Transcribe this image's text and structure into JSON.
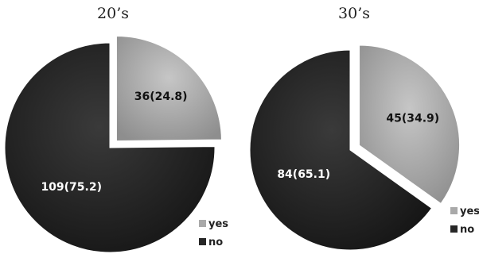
{
  "chart_data": [
    {
      "type": "pie",
      "title": "20’s",
      "categories": [
        "yes",
        "no"
      ],
      "values": [
        36,
        109
      ],
      "percents": [
        24.8,
        75.2
      ],
      "data_labels": [
        "36(24.8)",
        "109(75.2)"
      ],
      "exploded": [
        "yes"
      ],
      "legend": {
        "entries": [
          "yes",
          "no"
        ],
        "placement": "bottom-right"
      }
    },
    {
      "type": "pie",
      "title": "30’s",
      "categories": [
        "yes",
        "no"
      ],
      "values": [
        45,
        84
      ],
      "percents": [
        34.9,
        65.1
      ],
      "data_labels": [
        "45(34.9)",
        "84(65.1)"
      ],
      "exploded": [
        "yes"
      ],
      "legend": {
        "entries": [
          "yes",
          "no"
        ],
        "placement": "bottom-right"
      }
    }
  ],
  "colors": {
    "yes": "#a9a9a9",
    "no": "#262626",
    "yes_text": "#111111",
    "no_text": "#ffffff"
  }
}
